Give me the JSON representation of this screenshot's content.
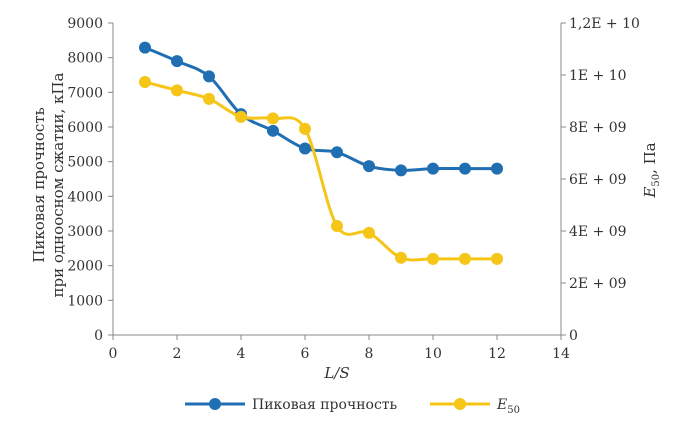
{
  "chart_data": {
    "type": "line",
    "x": [
      1,
      2,
      3,
      4,
      5,
      6,
      7,
      8,
      9,
      10,
      11,
      12
    ],
    "xlabel": "L/S",
    "xlim": [
      0,
      14
    ],
    "xticks": [
      "0",
      "2",
      "4",
      "6",
      "8",
      "10",
      "12",
      "14"
    ],
    "ylabel_left_line1": "Пиковая прочность",
    "ylabel_left_line2": "при одноосном сжатии, кПа",
    "ylim_left": [
      0,
      9000
    ],
    "yticks_left": [
      "0",
      "1000",
      "2000",
      "3000",
      "4000",
      "5000",
      "6000",
      "7000",
      "8000",
      "9000"
    ],
    "ylabel_right_main": "E",
    "ylabel_right_sub": "50",
    "ylabel_right_unit": ", Па",
    "ylim_right": [
      0,
      12000000000
    ],
    "yticks_right": [
      "0",
      "2E + 09",
      "4E + 09",
      "6E + 09",
      "8E + 09",
      "1E + 10",
      "1,2E + 10"
    ],
    "grid": false,
    "legend_position": "bottom",
    "series": [
      {
        "name": "Пиковая прочность",
        "axis": "left",
        "color": "#1f6fb2",
        "values": [
          8290,
          7900,
          7460,
          6370,
          5890,
          5380,
          5270,
          4870,
          4750,
          4800,
          4800,
          4800
        ]
      },
      {
        "name": "E",
        "name_sub": "50",
        "axis": "right",
        "color": "#f5c518",
        "values": [
          9730000000,
          9410000000,
          9080000000,
          8390000000,
          8330000000,
          7930000000,
          4190000000,
          3930000000,
          2970000000,
          2930000000,
          2930000000,
          2930000000
        ]
      }
    ]
  }
}
